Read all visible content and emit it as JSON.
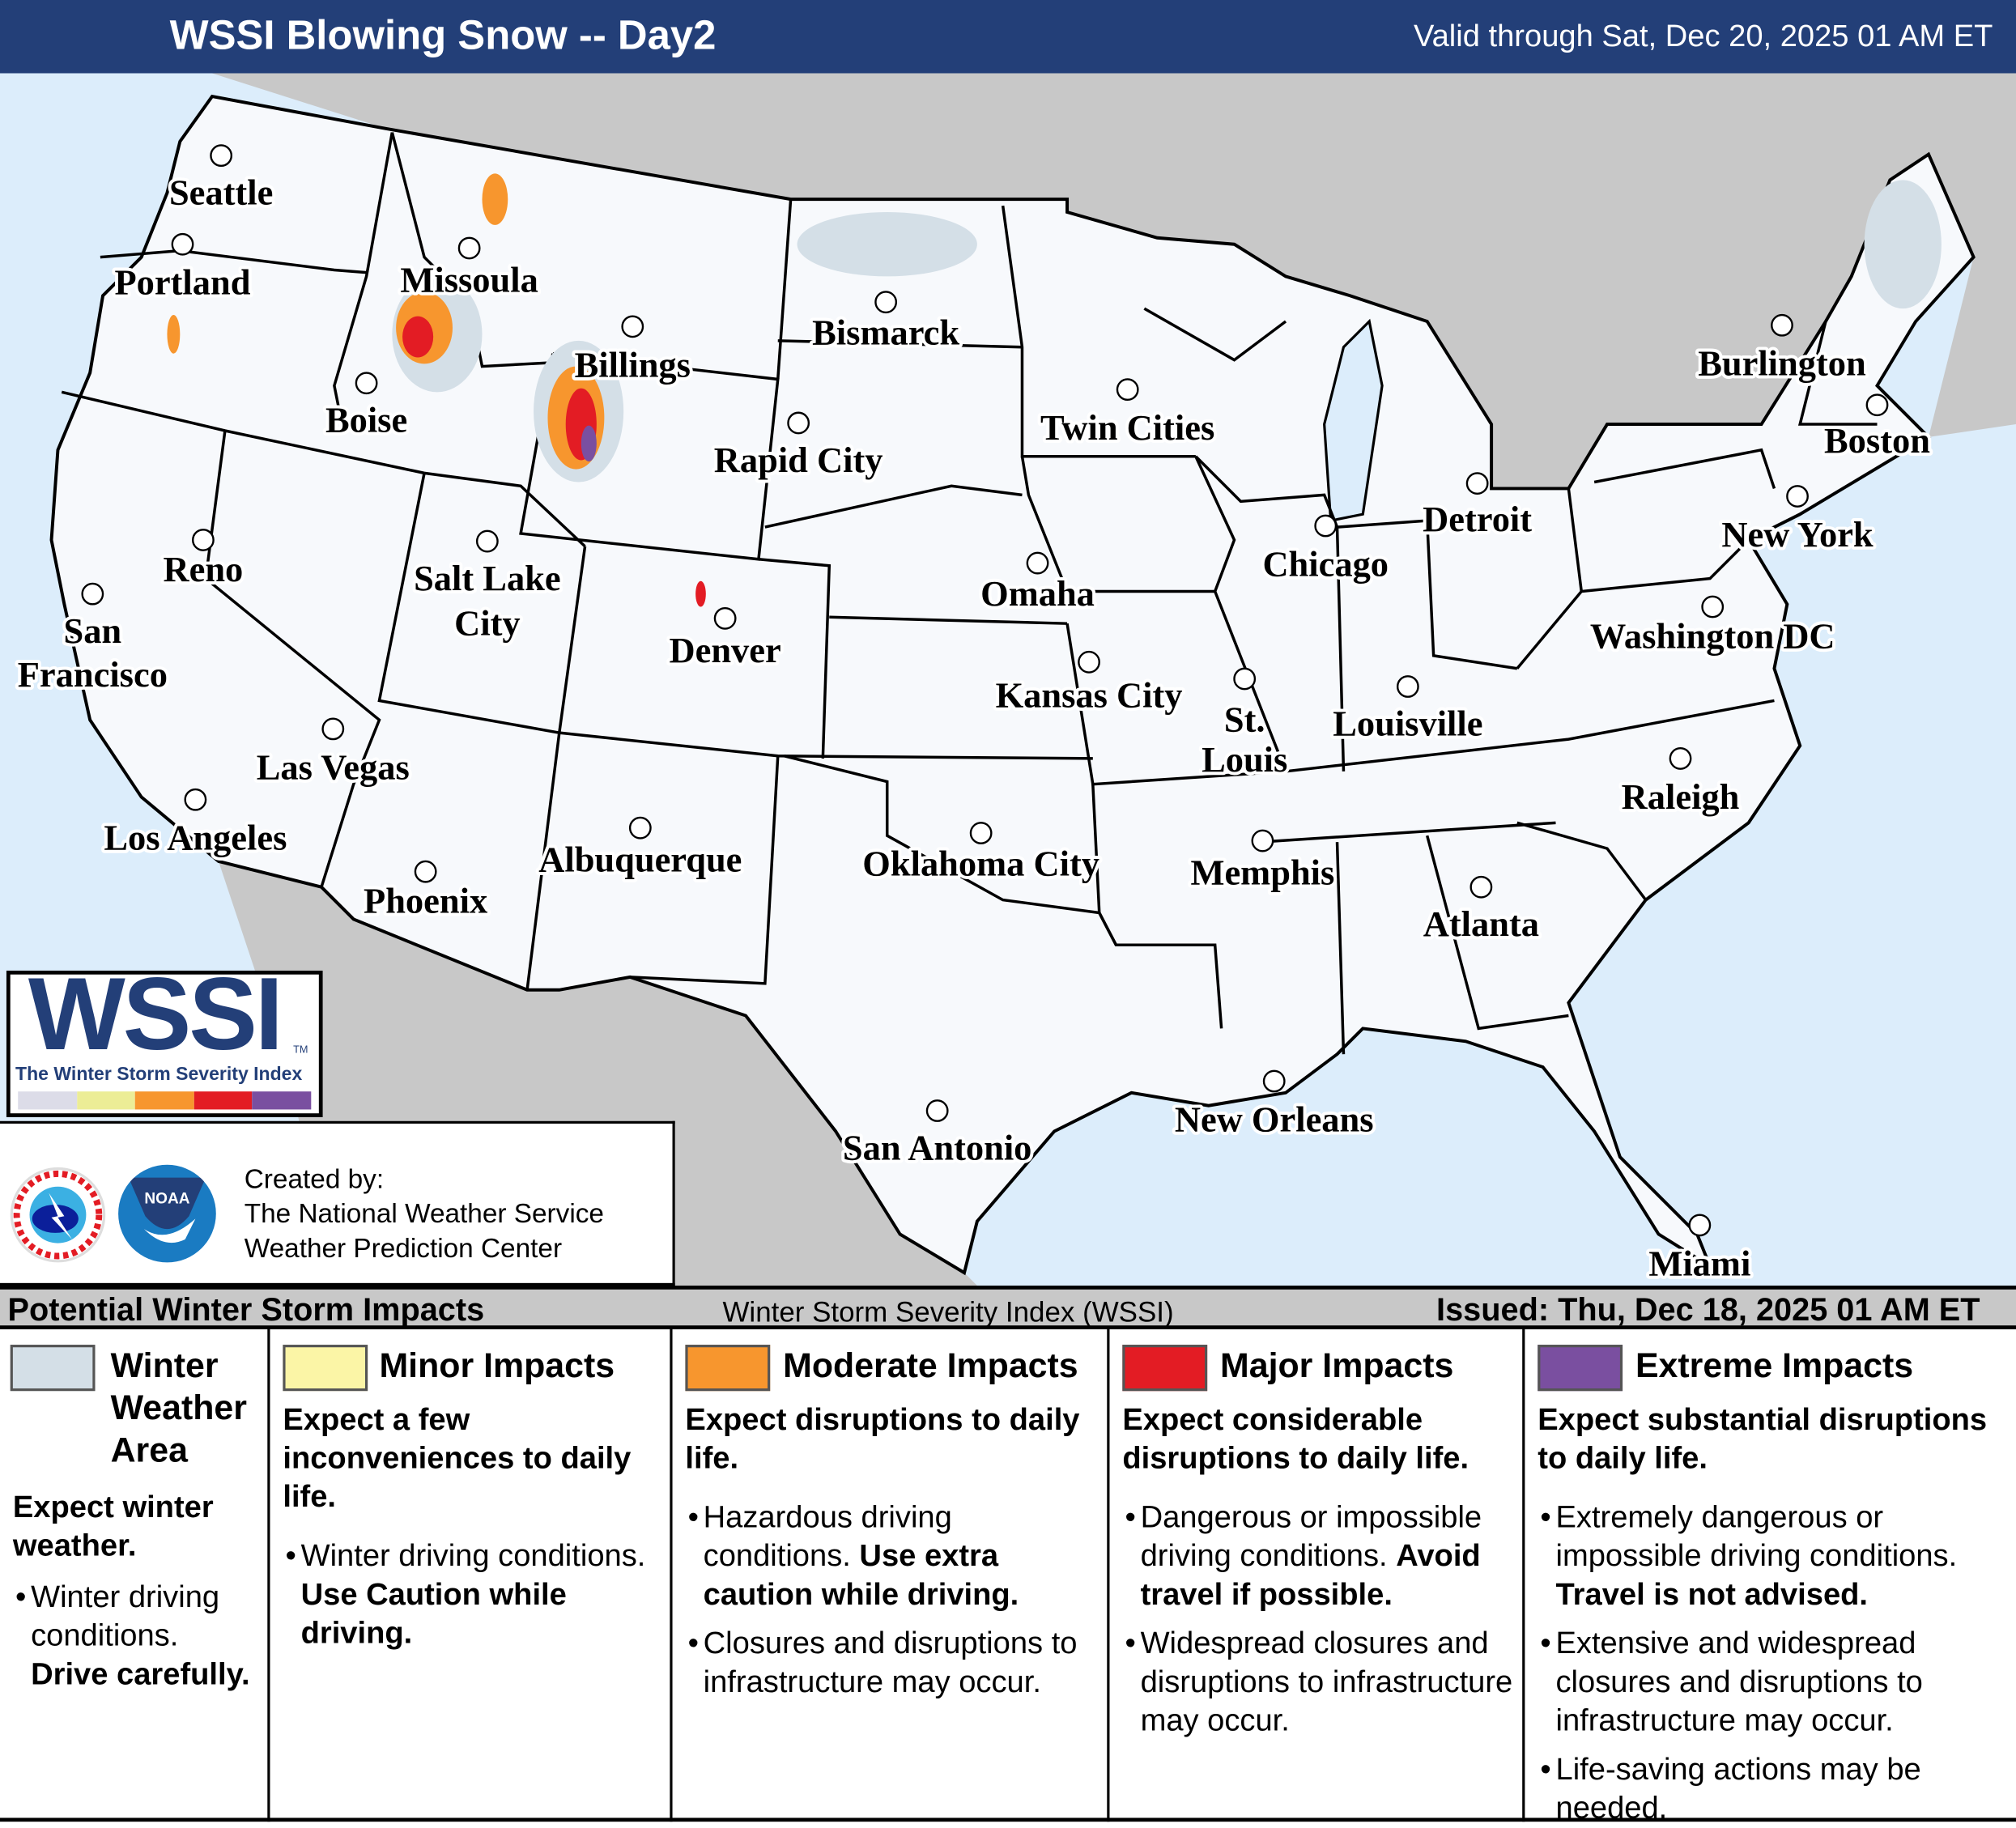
{
  "header": {
    "title": "WSSI Blowing Snow -- Day2",
    "valid": "Valid through Sat, Dec 20, 2025 01 AM ET"
  },
  "map": {
    "colors": {
      "ocean": "#dcedfb",
      "foreign_land": "#c8c8c8",
      "us_land": "#f7f9fc",
      "winter_weather_area": "#d4dfe7"
    },
    "cities": [
      "Seattle",
      "Portland",
      "Missoula",
      "Billings",
      "Boise",
      "Bismarck",
      "Rapid City",
      "Twin Cities",
      "Burlington",
      "Boston",
      "Reno",
      "Salt Lake City",
      "Detroit",
      "New York",
      "Chicago",
      "Omaha",
      "San Francisco",
      "Denver",
      "Washington DC",
      "Kansas City",
      "St. Louis",
      "Louisville",
      "Las Vegas",
      "Raleigh",
      "Los Angeles",
      "Albuquerque",
      "Oklahoma City",
      "Memphis",
      "Phoenix",
      "Atlanta",
      "New Orleans",
      "San Antonio",
      "Miami"
    ]
  },
  "logo": {
    "wordmark": "WSSI",
    "tm": "TM",
    "subtitle": "The Winter Storm Severity Index",
    "scale_colors": [
      "#dcdce8",
      "#eced96",
      "#f7962e",
      "#e31c24",
      "#7a4fa0"
    ]
  },
  "credit": {
    "created_by": "Created by:",
    "org1": "The National Weather Service",
    "org2": "Weather Prediction Center",
    "nws_logo_text": "NATIONAL WEATHER SERVICE",
    "noaa_logo_text": "NOAA"
  },
  "legend": {
    "left": "Potential Winter Storm Impacts",
    "center": "Winter Storm Severity Index (WSSI)",
    "issued": "Issued: Thu, Dec 18, 2025 01 AM ET",
    "columns": [
      {
        "title": "Winter Weather Area",
        "color": "#d4dfe7",
        "heading": "Expect winter weather.",
        "bullets": [
          [
            {
              "t": "Winter driving conditions. "
            },
            {
              "t": "Drive carefully.",
              "b": true
            }
          ]
        ]
      },
      {
        "title": "Minor Impacts",
        "color": "#fbf5a6",
        "heading": "Expect a few inconveniences to daily life.",
        "bullets": [
          [
            {
              "t": "Winter driving conditions. "
            },
            {
              "t": "Use Caution while driving.",
              "b": true
            }
          ]
        ]
      },
      {
        "title": "Moderate Impacts",
        "color": "#f7962e",
        "heading": "Expect disruptions to daily life.",
        "bullets": [
          [
            {
              "t": "Hazardous driving conditions. "
            },
            {
              "t": "Use extra caution while driving.",
              "b": true
            }
          ],
          [
            {
              "t": "Closures and disruptions to infrastructure may occur."
            }
          ]
        ]
      },
      {
        "title": "Major Impacts",
        "color": "#e31c24",
        "heading": "Expect considerable disruptions to daily life.",
        "bullets": [
          [
            {
              "t": "Dangerous or impossible driving conditions. "
            },
            {
              "t": "Avoid travel if possible.",
              "b": true
            }
          ],
          [
            {
              "t": "Widespread closures and disruptions to infrastructure may occur."
            }
          ]
        ]
      },
      {
        "title": "Extreme Impacts",
        "color": "#7a4fa0",
        "heading": "Expect substantial disruptions to daily life.",
        "bullets": [
          [
            {
              "t": "Extremely dangerous or impossible driving conditions. "
            },
            {
              "t": "Travel is not advised.",
              "b": true
            }
          ],
          [
            {
              "t": "Extensive and widespread closures and disruptions to infrastructure may occur."
            }
          ],
          [
            {
              "t": "Life-saving actions may be needed."
            }
          ]
        ]
      }
    ]
  }
}
